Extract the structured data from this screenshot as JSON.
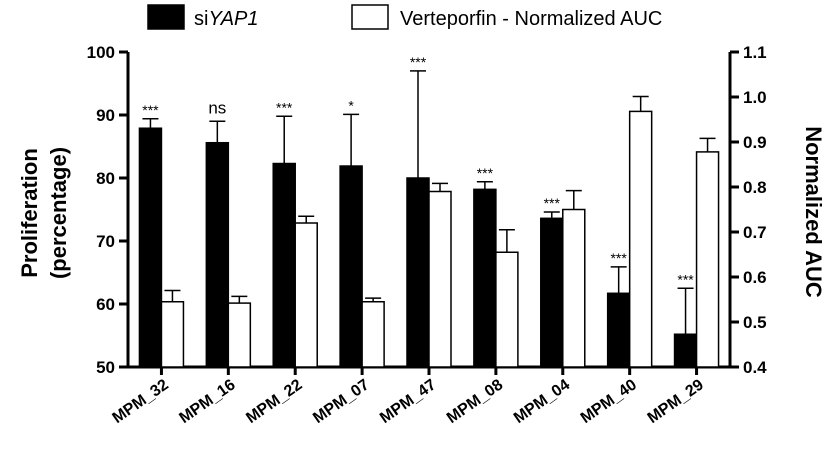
{
  "chart_data": {
    "type": "bar",
    "categories": [
      "MPM_32",
      "MPM_16",
      "MPM_22",
      "MPM_07",
      "MPM_47",
      "MPM_08",
      "MPM_04",
      "MPM_40",
      "MPM_29"
    ],
    "legend": {
      "series1_prefix": "si",
      "series1_italic": "YAP1",
      "series2": "Verteporfin - Normalized AUC",
      "placement": "top"
    },
    "y_left": {
      "label_line1": "Proliferation",
      "label_line2": "(percentage)",
      "range": [
        50,
        100
      ],
      "ticks": [
        50,
        60,
        70,
        80,
        90,
        100
      ],
      "tick_labels": [
        "50",
        "60",
        "70",
        "80",
        "90",
        "100"
      ]
    },
    "y_right": {
      "label": "Normalized AUC",
      "range": [
        0.4,
        1.1
      ],
      "ticks": [
        0.4,
        0.5,
        0.6,
        0.7,
        0.8,
        0.9,
        1.0,
        1.1
      ],
      "tick_labels": [
        "0.4",
        "0.5",
        "0.6",
        "0.7",
        "0.8",
        "0.9",
        "1.0",
        "1.1"
      ]
    },
    "series": [
      {
        "axis": "left",
        "color": "#000000",
        "values": [
          87.9,
          85.6,
          82.3,
          81.9,
          80.0,
          78.2,
          73.6,
          61.7,
          55.2
        ],
        "errors": [
          1.5,
          3.4,
          7.5,
          8.2,
          17.0,
          1.2,
          1.0,
          4.2,
          7.3
        ]
      },
      {
        "axis": "right",
        "color": "#ffffff",
        "values": [
          0.545,
          0.542,
          0.72,
          0.545,
          0.79,
          0.655,
          0.75,
          0.968,
          0.878
        ],
        "errors": [
          0.025,
          0.015,
          0.015,
          0.008,
          0.018,
          0.05,
          0.042,
          0.033,
          0.03
        ]
      }
    ],
    "significance": [
      "***",
      "ns",
      "***",
      "*",
      "***",
      "***",
      "***",
      "***",
      "***"
    ],
    "grid": false
  }
}
